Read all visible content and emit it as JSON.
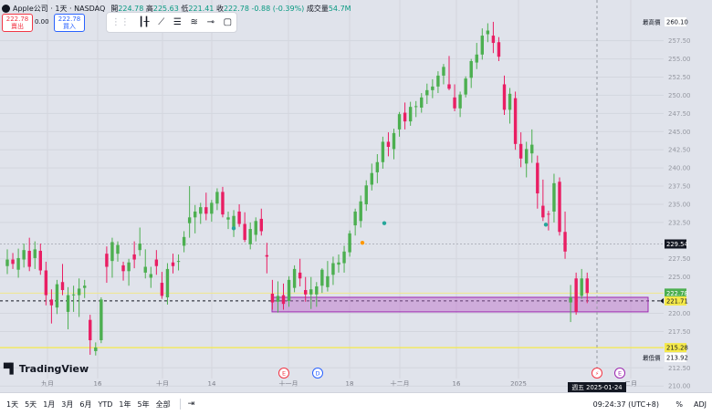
{
  "header": {
    "symbol": "Apple公司 · 1天 · NASDAQ",
    "ohlc": {
      "o_label": "開",
      "o": "224.78",
      "h_label": "高",
      "h": "225.63",
      "l_label": "低",
      "l": "221.41",
      "c_label": "收",
      "c": "222.78",
      "change": "-0.88 (-0.39%)",
      "vol_label": "成交量",
      "vol": "54.7M"
    }
  },
  "trade": {
    "sell_price": "222.78",
    "sell_label": "賣出",
    "spread": "0.00",
    "buy_price": "222.78",
    "buy_label": "買入"
  },
  "toolbar": {
    "icons": [
      "grip-icon",
      "candles-icon",
      "line-draw-icon",
      "lines-icon",
      "fib-icon",
      "hline-icon",
      "rect-icon"
    ]
  },
  "logo": {
    "text": "TradingView"
  },
  "bottom": {
    "ranges": [
      "1天",
      "5天",
      "1月",
      "3月",
      "6月",
      "YTD",
      "1年",
      "5年",
      "全部"
    ],
    "clock": "09:24:37 (UTC+8)",
    "pct": "%",
    "adj": "ADJ"
  },
  "chart_data": {
    "type": "candlestick",
    "x_labels": [
      "九月",
      "16",
      "十月",
      "14",
      "十一月",
      "18",
      "十二月",
      "16",
      "2025",
      "二月"
    ],
    "y_ticks": [
      "257.50",
      "255.00",
      "252.50",
      "250.00",
      "247.50",
      "245.00",
      "242.50",
      "240.00",
      "237.50",
      "235.00",
      "232.50",
      "227.50",
      "225.00",
      "220.00",
      "217.50",
      "212.50",
      "210.00"
    ],
    "ylim": [
      209.4,
      262.1
    ],
    "price_labels": {
      "high_label": "最高價",
      "high": "260.10",
      "level_1": "229.54",
      "current": "222.78",
      "level_2": "221.71",
      "level_3": "215.28",
      "low_label": "最低價",
      "low": "213.92"
    },
    "cursor_date": "週五 2025-01-24",
    "event_markers": [
      "E",
      "D",
      "E"
    ],
    "zone": {
      "top": 222.2,
      "bottom": 220.2
    },
    "candles": [
      [
        226.5,
        228.8,
        225.4,
        227.4
      ],
      [
        227.4,
        228.3,
        226.1,
        226.8
      ],
      [
        226.0,
        228.9,
        224.9,
        227.6
      ],
      [
        227.4,
        229.6,
        226.3,
        228.7
      ],
      [
        228.6,
        230.4,
        225.8,
        226.4
      ],
      [
        227.6,
        229.9,
        226.1,
        228.8
      ],
      [
        228.6,
        229.6,
        225.3,
        225.9
      ],
      [
        225.9,
        227.1,
        221.1,
        222.5
      ],
      [
        221.9,
        223.3,
        218.6,
        221.1
      ],
      [
        220.8,
        224.6,
        219.9,
        224.0
      ],
      [
        224.3,
        226.8,
        222.5,
        223.2
      ],
      [
        220.2,
        223.6,
        217.8,
        222.5
      ],
      [
        222.5,
        223.8,
        220.2,
        222.6
      ],
      [
        222.5,
        224.8,
        219.5,
        223.4
      ],
      [
        223.5,
        224.6,
        222.1,
        223.8
      ],
      [
        219.1,
        219.8,
        214.3,
        216.3
      ],
      [
        214.8,
        216.0,
        214.2,
        215.3
      ],
      [
        216.3,
        222.2,
        215.9,
        221.9
      ],
      [
        228.2,
        229.2,
        224.2,
        226.4
      ],
      [
        227.2,
        230.4,
        224.9,
        229.8
      ],
      [
        228.2,
        229.9,
        227.1,
        229.4
      ],
      [
        226.6,
        227.1,
        224.5,
        225.8
      ],
      [
        225.8,
        227.5,
        223.8,
        227.0
      ],
      [
        228.1,
        229.9,
        226.2,
        227.4
      ],
      [
        228.7,
        231.8,
        227.9,
        229.6
      ],
      [
        225.6,
        228.8,
        224.8,
        226.4
      ],
      [
        224.9,
        226.4,
        223.5,
        225.4
      ],
      [
        227.4,
        228.7,
        225.3,
        226.5
      ],
      [
        224.2,
        225.7,
        222.0,
        222.4
      ],
      [
        222.2,
        226.9,
        221.2,
        226.1
      ],
      [
        227.0,
        228.2,
        225.5,
        226.5
      ],
      [
        227.1,
        228.1,
        225.9,
        227.2
      ],
      [
        229.3,
        231.3,
        228.4,
        230.5
      ],
      [
        232.4,
        237.5,
        230.4,
        233.2
      ],
      [
        233.2,
        234.9,
        231.0,
        234.0
      ],
      [
        233.7,
        235.2,
        232.3,
        234.6
      ],
      [
        234.6,
        236.6,
        232.8,
        233.7
      ],
      [
        233.7,
        235.6,
        232.6,
        235.2
      ],
      [
        235.1,
        237.2,
        234.2,
        236.7
      ],
      [
        236.7,
        237.4,
        233.2,
        233.6
      ],
      [
        232.9,
        234.0,
        231.6,
        233.2
      ],
      [
        231.7,
        234.2,
        230.5,
        233.4
      ],
      [
        234.0,
        235.0,
        231.9,
        232.3
      ],
      [
        232.3,
        233.9,
        229.8,
        230.1
      ],
      [
        229.5,
        232.5,
        228.8,
        231.6
      ],
      [
        230.8,
        233.2,
        229.9,
        232.7
      ],
      [
        233.0,
        234.4,
        230.7,
        231.3
      ],
      [
        228.0,
        229.7,
        225.5,
        227.8
      ],
      [
        222.7,
        224.6,
        220.5,
        221.5
      ],
      [
        221.6,
        224.4,
        220.1,
        222.4
      ],
      [
        222.5,
        224.1,
        220.5,
        221.3
      ],
      [
        221.7,
        225.1,
        220.9,
        224.6
      ],
      [
        223.5,
        226.6,
        222.9,
        226.1
      ],
      [
        225.6,
        227.5,
        223.7,
        224.8
      ],
      [
        223.2,
        225.0,
        221.6,
        222.6
      ],
      [
        222.6,
        225.0,
        220.6,
        223.3
      ],
      [
        222.6,
        224.3,
        220.9,
        223.7
      ],
      [
        223.8,
        226.2,
        222.8,
        226.0
      ],
      [
        223.6,
        227.2,
        223.0,
        225.1
      ],
      [
        225.3,
        227.8,
        223.9,
        226.9
      ],
      [
        226.7,
        228.1,
        225.6,
        227.0
      ],
      [
        226.9,
        229.3,
        225.6,
        228.5
      ],
      [
        228.4,
        231.4,
        227.8,
        231.0
      ],
      [
        232.1,
        234.4,
        230.7,
        234.0
      ],
      [
        232.7,
        236.2,
        231.8,
        235.4
      ],
      [
        235.0,
        238.3,
        234.1,
        237.6
      ],
      [
        237.7,
        240.6,
        236.9,
        239.3
      ],
      [
        239.4,
        241.9,
        237.9,
        240.8
      ],
      [
        240.8,
        244.3,
        239.9,
        243.6
      ],
      [
        243.6,
        244.9,
        241.6,
        242.9
      ],
      [
        242.6,
        245.4,
        241.2,
        244.8
      ],
      [
        245.3,
        247.7,
        244.3,
        247.4
      ],
      [
        247.6,
        249.0,
        245.3,
        246.4
      ],
      [
        246.4,
        249.1,
        245.8,
        248.4
      ],
      [
        248.4,
        249.2,
        247.0,
        248.5
      ],
      [
        248.3,
        250.3,
        247.6,
        249.7
      ],
      [
        250.0,
        251.6,
        248.8,
        250.7
      ],
      [
        250.7,
        252.2,
        249.6,
        251.2
      ],
      [
        251.2,
        253.3,
        250.3,
        252.7
      ],
      [
        252.7,
        254.3,
        251.5,
        253.9
      ],
      [
        251.5,
        255.4,
        250.7,
        250.9
      ],
      [
        249.7,
        251.5,
        247.8,
        248.2
      ],
      [
        248.2,
        250.5,
        247.0,
        250.1
      ],
      [
        250.1,
        252.6,
        249.7,
        252.3
      ],
      [
        252.4,
        255.0,
        251.0,
        254.7
      ],
      [
        254.5,
        257.2,
        253.6,
        255.6
      ],
      [
        255.6,
        259.2,
        254.9,
        258.2
      ],
      [
        258.4,
        259.9,
        257.3,
        258.9
      ],
      [
        258.2,
        260.1,
        255.8,
        257.2
      ],
      [
        257.3,
        258.0,
        254.7,
        255.3
      ],
      [
        251.5,
        252.7,
        247.3,
        248.0
      ],
      [
        248.0,
        251.0,
        246.1,
        250.2
      ],
      [
        249.6,
        250.5,
        242.5,
        243.3
      ],
      [
        243.3,
        244.9,
        240.1,
        241.3
      ],
      [
        240.6,
        243.6,
        238.7,
        242.6
      ],
      [
        242.0,
        245.3,
        240.7,
        243.2
      ],
      [
        240.7,
        241.7,
        234.4,
        236.5
      ],
      [
        234.8,
        238.4,
        232.7,
        233.2
      ],
      [
        233.7,
        234.1,
        231.4,
        233.6
      ],
      [
        234.0,
        239.2,
        232.5,
        237.9
      ],
      [
        238.1,
        238.7,
        230.7,
        231.2
      ],
      [
        231.2,
        234.0,
        227.5,
        228.5
      ],
      [
        221.5,
        223.9,
        218.8,
        222.2
      ],
      [
        224.8,
        225.6,
        219.8,
        220.2
      ],
      [
        222.4,
        226.1,
        222.0,
        224.8
      ],
      [
        224.8,
        225.6,
        221.4,
        222.8
      ]
    ]
  }
}
